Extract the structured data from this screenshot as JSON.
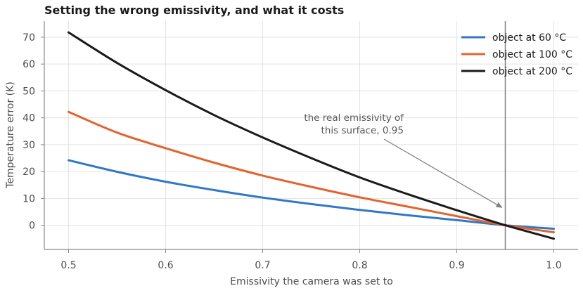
{
  "chart_data": {
    "type": "line",
    "title": "Setting the wrong emissivity, and what it costs",
    "xlabel": "Emissivity the camera was set to",
    "ylabel": "Temperature error (K)",
    "xlim": [
      0.475,
      1.025
    ],
    "ylim": [
      -9,
      76
    ],
    "xticks": [
      0.5,
      0.6,
      0.7,
      0.8,
      0.9,
      1.0
    ],
    "xtick_labels": [
      "0.5",
      "0.6",
      "0.7",
      "0.8",
      "0.9",
      "1.0"
    ],
    "yticks": [
      0,
      10,
      20,
      30,
      40,
      50,
      60,
      70
    ],
    "ytick_labels": [
      "0",
      "10",
      "20",
      "30",
      "40",
      "50",
      "60",
      "70"
    ],
    "grid": true,
    "legend_position": "top-right",
    "x": [
      0.5,
      0.55,
      0.6,
      0.65,
      0.7,
      0.75,
      0.8,
      0.85,
      0.9,
      0.95,
      1.0
    ],
    "series": [
      {
        "name": "object at 60 °C",
        "color": "#2f78c8",
        "values": [
          24.2,
          19.9,
          16.2,
          13.1,
          10.3,
          7.9,
          5.7,
          3.7,
          1.9,
          0.0,
          -1.3
        ]
      },
      {
        "name": "object at 100 °C",
        "color": "#e2632e",
        "values": [
          42.2,
          34.5,
          28.7,
          23.3,
          18.5,
          14.3,
          10.4,
          6.9,
          3.4,
          0.0,
          -2.6
        ]
      },
      {
        "name": "object at 200 °C",
        "color": "#1a1a1a",
        "values": [
          71.8,
          60.4,
          50.3,
          41.0,
          32.7,
          25.0,
          17.8,
          11.5,
          5.6,
          0.0,
          -5.0
        ]
      }
    ],
    "vline": {
      "x": 0.95,
      "color": "#808080"
    },
    "annotation": {
      "lines": [
        "the real emissivity of",
        "this surface, 0.95"
      ],
      "arrow_target": [
        0.95,
        6.5
      ]
    }
  }
}
